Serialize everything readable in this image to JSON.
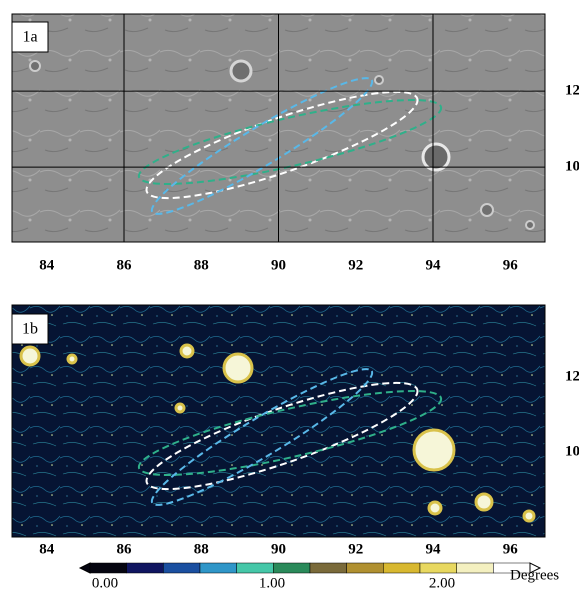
{
  "panels": [
    {
      "label": "1a",
      "xticks": [
        84,
        86,
        88,
        90,
        92,
        94,
        96
      ],
      "yticks": [
        12,
        10
      ],
      "xlim": [
        83.1,
        96.9
      ],
      "ylim": [
        8.03,
        14.03
      ]
    },
    {
      "label": "1b",
      "xticks": [
        84,
        86,
        88,
        90,
        92,
        94,
        96
      ],
      "yticks": [
        12,
        10
      ],
      "xlim": [
        83.1,
        96.9
      ],
      "ylim": [
        7.73,
        13.92
      ]
    }
  ],
  "colorbar": {
    "ticks": [
      "0.00",
      "1.00",
      "2.00"
    ],
    "unit": "Degrees"
  }
}
